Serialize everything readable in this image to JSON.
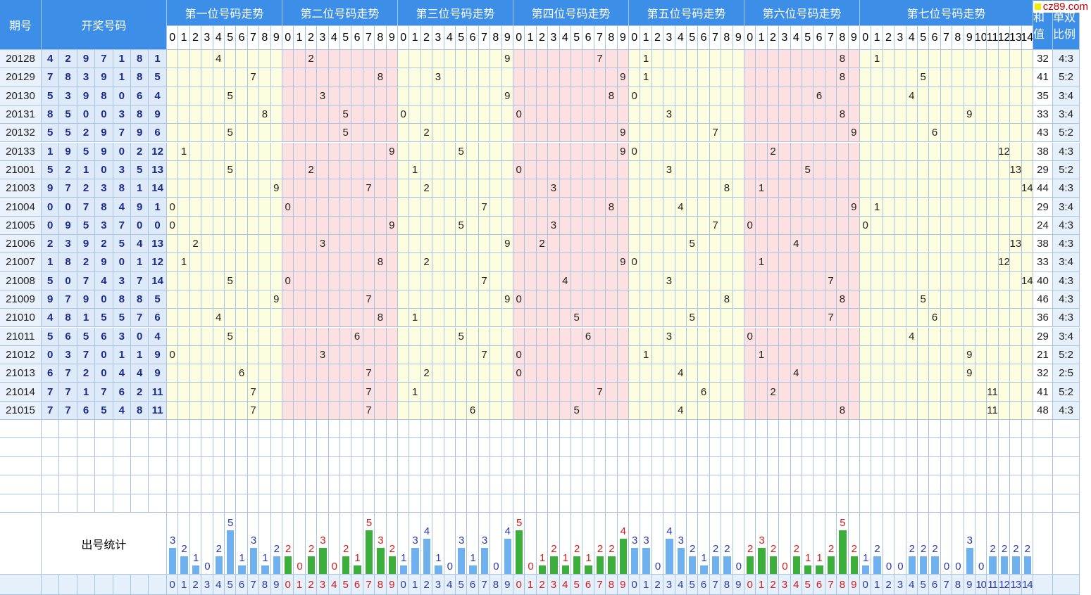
{
  "header": {
    "period_label": "期号",
    "draw_label": "开奖号码",
    "sum_label": "和值",
    "ratio_label": "单双比例",
    "stats_label": "出号统计",
    "logo_text": "cz89.com",
    "groups": [
      {
        "label": "第一位号码走势",
        "digits": [
          "0",
          "1",
          "2",
          "3",
          "4",
          "5",
          "6",
          "7",
          "8",
          "9"
        ]
      },
      {
        "label": "第二位号码走势",
        "digits": [
          "0",
          "1",
          "2",
          "3",
          "4",
          "5",
          "6",
          "7",
          "8",
          "9"
        ]
      },
      {
        "label": "第三位号码走势",
        "digits": [
          "0",
          "1",
          "2",
          "3",
          "4",
          "5",
          "6",
          "7",
          "8",
          "9"
        ]
      },
      {
        "label": "第四位号码走势",
        "digits": [
          "0",
          "1",
          "2",
          "3",
          "4",
          "5",
          "6",
          "7",
          "8",
          "9"
        ]
      },
      {
        "label": "第五位号码走势",
        "digits": [
          "0",
          "1",
          "2",
          "3",
          "4",
          "5",
          "6",
          "7",
          "8",
          "9"
        ]
      },
      {
        "label": "第六位号码走势",
        "digits": [
          "0",
          "1",
          "2",
          "3",
          "4",
          "5",
          "6",
          "7",
          "8",
          "9"
        ]
      },
      {
        "label": "第七位号码走势",
        "digits": [
          "0",
          "1",
          "2",
          "3",
          "4",
          "5",
          "6",
          "7",
          "8",
          "9",
          "10",
          "11",
          "12",
          "13",
          "14"
        ]
      }
    ]
  },
  "chart_data": {
    "type": "table",
    "rows": [
      {
        "period": "20128",
        "draw": [
          "4",
          "2",
          "9",
          "7",
          "1",
          "8",
          "1"
        ],
        "sum": "32",
        "ratio": "4:3"
      },
      {
        "period": "20129",
        "draw": [
          "7",
          "8",
          "3",
          "9",
          "1",
          "8",
          "5"
        ],
        "sum": "41",
        "ratio": "5:2"
      },
      {
        "period": "20130",
        "draw": [
          "5",
          "3",
          "9",
          "8",
          "0",
          "6",
          "4"
        ],
        "sum": "35",
        "ratio": "3:4"
      },
      {
        "period": "20131",
        "draw": [
          "8",
          "5",
          "0",
          "0",
          "3",
          "8",
          "9"
        ],
        "sum": "33",
        "ratio": "3:4"
      },
      {
        "period": "20132",
        "draw": [
          "5",
          "5",
          "2",
          "9",
          "7",
          "9",
          "6"
        ],
        "sum": "43",
        "ratio": "5:2"
      },
      {
        "period": "20133",
        "draw": [
          "1",
          "9",
          "5",
          "9",
          "0",
          "2",
          "12"
        ],
        "sum": "38",
        "ratio": "4:3"
      },
      {
        "period": "21001",
        "draw": [
          "5",
          "2",
          "1",
          "0",
          "3",
          "5",
          "13"
        ],
        "sum": "29",
        "ratio": "5:2"
      },
      {
        "period": "21003",
        "draw": [
          "9",
          "7",
          "2",
          "3",
          "8",
          "1",
          "14"
        ],
        "sum": "44",
        "ratio": "4:3"
      },
      {
        "period": "21004",
        "draw": [
          "0",
          "0",
          "7",
          "8",
          "4",
          "9",
          "1"
        ],
        "sum": "29",
        "ratio": "3:4"
      },
      {
        "period": "21005",
        "draw": [
          "0",
          "9",
          "5",
          "3",
          "7",
          "0",
          "0"
        ],
        "sum": "24",
        "ratio": "4:3"
      },
      {
        "period": "21006",
        "draw": [
          "2",
          "3",
          "9",
          "2",
          "5",
          "4",
          "13"
        ],
        "sum": "38",
        "ratio": "4:3"
      },
      {
        "period": "21007",
        "draw": [
          "1",
          "8",
          "2",
          "9",
          "0",
          "1",
          "12"
        ],
        "sum": "33",
        "ratio": "3:4"
      },
      {
        "period": "21008",
        "draw": [
          "5",
          "0",
          "7",
          "4",
          "3",
          "7",
          "14"
        ],
        "sum": "40",
        "ratio": "4:3"
      },
      {
        "period": "21009",
        "draw": [
          "9",
          "7",
          "9",
          "0",
          "8",
          "8",
          "5"
        ],
        "sum": "46",
        "ratio": "4:3"
      },
      {
        "period": "21010",
        "draw": [
          "4",
          "8",
          "1",
          "5",
          "5",
          "7",
          "6"
        ],
        "sum": "36",
        "ratio": "4:3"
      },
      {
        "period": "21011",
        "draw": [
          "5",
          "6",
          "5",
          "6",
          "3",
          "0",
          "4"
        ],
        "sum": "29",
        "ratio": "3:4"
      },
      {
        "period": "21012",
        "draw": [
          "0",
          "3",
          "7",
          "0",
          "1",
          "1",
          "9"
        ],
        "sum": "21",
        "ratio": "5:2"
      },
      {
        "period": "21013",
        "draw": [
          "6",
          "7",
          "2",
          "0",
          "4",
          "4",
          "9"
        ],
        "sum": "32",
        "ratio": "2:5"
      },
      {
        "period": "21014",
        "draw": [
          "7",
          "7",
          "1",
          "7",
          "6",
          "2",
          "11"
        ],
        "sum": "41",
        "ratio": "5:2"
      },
      {
        "period": "21015",
        "draw": [
          "7",
          "7",
          "6",
          "5",
          "4",
          "8",
          "11"
        ],
        "sum": "48",
        "ratio": "4:3"
      }
    ],
    "stats": [
      [
        3,
        2,
        1,
        0,
        2,
        5,
        1,
        3,
        1,
        2
      ],
      [
        2,
        0,
        2,
        3,
        0,
        2,
        1,
        5,
        3,
        2
      ],
      [
        1,
        3,
        4,
        1,
        0,
        3,
        1,
        3,
        0,
        4
      ],
      [
        5,
        0,
        1,
        2,
        1,
        2,
        1,
        2,
        2,
        4
      ],
      [
        3,
        3,
        0,
        4,
        3,
        2,
        1,
        2,
        2,
        0
      ],
      [
        2,
        3,
        2,
        0,
        2,
        1,
        1,
        2,
        5,
        2
      ],
      [
        1,
        2,
        0,
        0,
        2,
        2,
        2,
        0,
        0,
        3,
        0,
        2,
        2,
        2,
        2
      ]
    ],
    "colors": {
      "header_bg": "#3d8ee6",
      "band_yellow": "#fdfde0",
      "band_pink": "#fde0e0",
      "draw_bg": "#dfeaf8",
      "bar_blue": "#6fb0ee",
      "bar_green": "#3bae3b",
      "label_blue": "#2b3aa8",
      "label_red": "#d21c1c"
    }
  }
}
